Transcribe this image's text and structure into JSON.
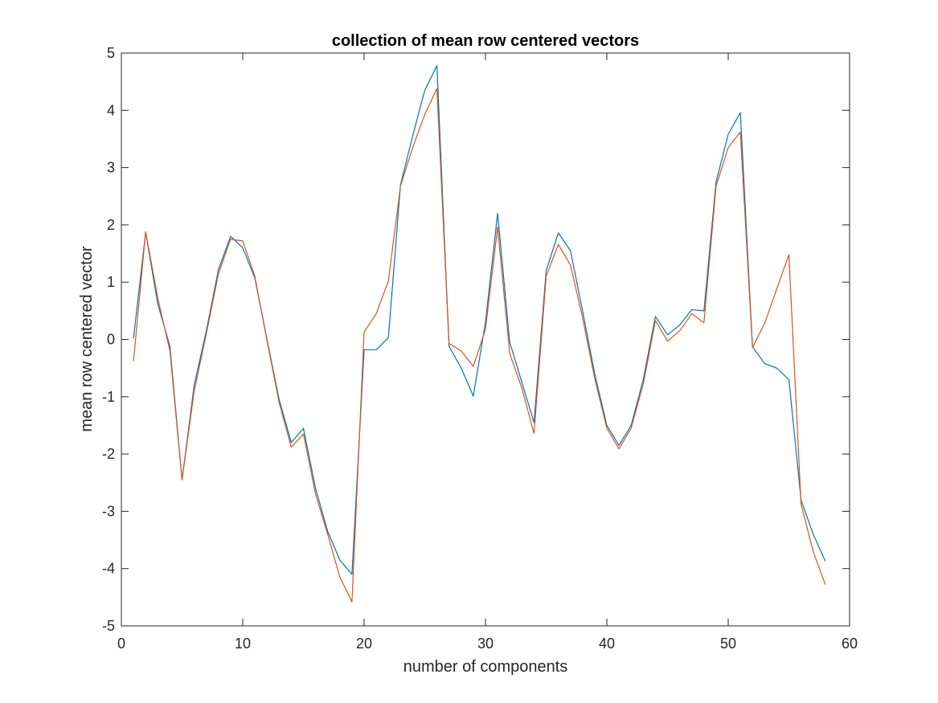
{
  "chart_data": {
    "type": "line",
    "title": "collection of mean row centered vectors",
    "xlabel": "number of components",
    "ylabel": "mean row centered vector",
    "xlim": [
      0,
      60
    ],
    "ylim": [
      -5,
      5
    ],
    "xticks": [
      0,
      10,
      20,
      30,
      40,
      50,
      60
    ],
    "yticks": [
      -5,
      -4,
      -3,
      -2,
      -1,
      0,
      1,
      2,
      3,
      4,
      5
    ],
    "grid": false,
    "box": true,
    "x": [
      1,
      2,
      3,
      4,
      5,
      6,
      7,
      8,
      9,
      10,
      11,
      12,
      13,
      14,
      15,
      16,
      17,
      18,
      19,
      20,
      21,
      22,
      23,
      24,
      25,
      26,
      27,
      28,
      29,
      30,
      31,
      32,
      33,
      34,
      35,
      36,
      37,
      38,
      39,
      40,
      41,
      42,
      43,
      44,
      45,
      46,
      47,
      48,
      49,
      50,
      51,
      52,
      53,
      54,
      55,
      56,
      57,
      58
    ],
    "series": [
      {
        "color": "#0072BD",
        "values": [
          0.02,
          1.87,
          0.62,
          -0.12,
          -2.45,
          -0.8,
          0.15,
          1.22,
          1.8,
          1.6,
          1.07,
          0.0,
          -1.05,
          -1.8,
          -1.55,
          -2.6,
          -3.35,
          -3.85,
          -4.1,
          -0.18,
          -0.18,
          0.03,
          2.7,
          3.55,
          4.35,
          4.78,
          -0.12,
          -0.5,
          -0.99,
          0.3,
          2.2,
          -0.05,
          -0.75,
          -1.45,
          1.2,
          1.86,
          1.55,
          0.5,
          -0.6,
          -1.5,
          -1.85,
          -1.5,
          -0.7,
          0.4,
          0.08,
          0.25,
          0.52,
          0.5,
          2.75,
          3.58,
          3.96,
          -0.13,
          -0.42,
          -0.5,
          -0.7,
          -2.8,
          -3.4,
          -3.87
        ]
      },
      {
        "color": "#D95319",
        "values": [
          -0.38,
          1.88,
          0.72,
          -0.2,
          -2.45,
          -0.9,
          0.1,
          1.15,
          1.75,
          1.72,
          1.1,
          -0.02,
          -1.1,
          -1.88,
          -1.65,
          -2.7,
          -3.4,
          -4.15,
          -4.58,
          0.13,
          0.45,
          1.02,
          2.68,
          3.35,
          3.93,
          4.38,
          -0.07,
          -0.2,
          -0.47,
          0.18,
          1.96,
          -0.25,
          -0.85,
          -1.64,
          1.1,
          1.66,
          1.3,
          0.38,
          -0.68,
          -1.55,
          -1.91,
          -1.55,
          -0.78,
          0.33,
          -0.03,
          0.15,
          0.45,
          0.29,
          2.68,
          3.35,
          3.62,
          -0.14,
          0.28,
          0.88,
          1.48,
          -2.87,
          -3.7,
          -4.28
        ]
      }
    ]
  }
}
